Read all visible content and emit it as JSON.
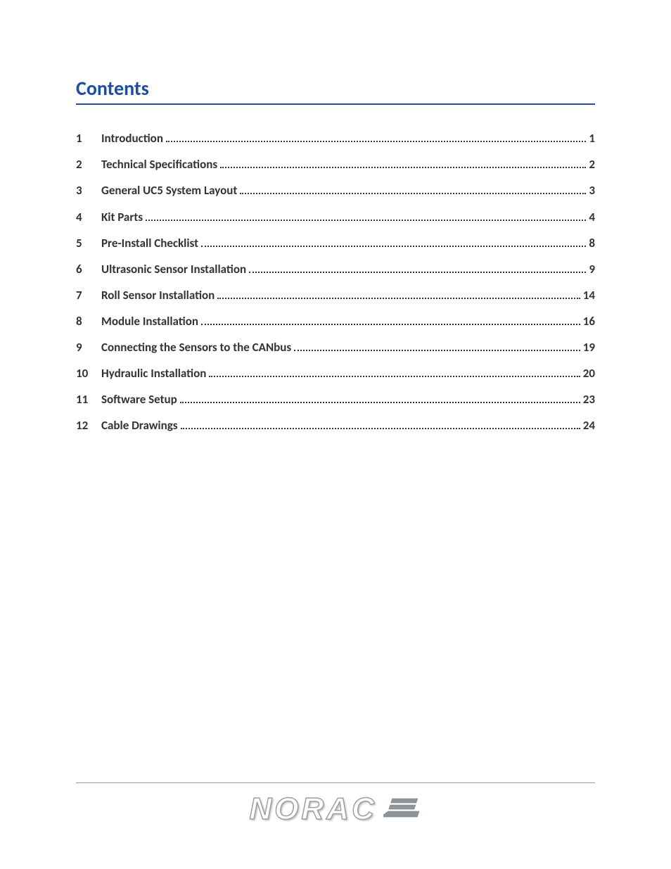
{
  "heading": {
    "text": "Contents",
    "color": "#1f4e9c",
    "underline_color": "#1f4e9c",
    "fontsize": 28,
    "font_weight": "bold"
  },
  "toc": {
    "font_weight": "bold",
    "fontsize": 17,
    "text_color": "#333333",
    "leader_style": "dotted",
    "items": [
      {
        "num": "1",
        "title": "Introduction",
        "page": "1"
      },
      {
        "num": "2",
        "title": "Technical Specifications",
        "page": "2"
      },
      {
        "num": "3",
        "title": "General UC5 System Layout",
        "page": "3"
      },
      {
        "num": "4",
        "title": "Kit Parts",
        "page": "4"
      },
      {
        "num": "5",
        "title": "Pre-Install Checklist",
        "page": "8"
      },
      {
        "num": "6",
        "title": "Ultrasonic Sensor Installation",
        "page": "9"
      },
      {
        "num": "7",
        "title": "Roll Sensor Installation",
        "page": "14"
      },
      {
        "num": "8",
        "title": "Module Installation",
        "page": "16"
      },
      {
        "num": "9",
        "title": "Connecting the Sensors to the CANbus",
        "page": "19"
      },
      {
        "num": "10",
        "title": "Hydraulic Installation",
        "page": "20"
      },
      {
        "num": "11",
        "title": "Software Setup",
        "page": "23"
      },
      {
        "num": "12",
        "title": "Cable Drawings",
        "page": "24"
      }
    ]
  },
  "footer": {
    "rule_color": "#999999",
    "logo_text": "NORAC",
    "logo_stroke": "#9aa0a6",
    "logo_fill": "#ffffff",
    "logo_mark_fill": "#8f949a",
    "logo_mark_stroke": "#6d7278"
  },
  "page_background": "#ffffff"
}
